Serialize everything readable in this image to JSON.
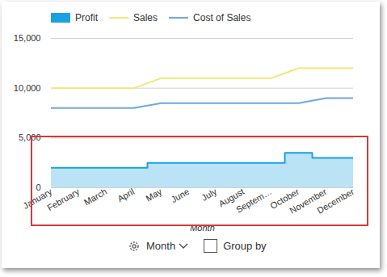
{
  "chart_data": {
    "type": "line",
    "x_label": "Month",
    "categories": [
      "January",
      "February",
      "March",
      "April",
      "May",
      "June",
      "July",
      "August",
      "Septem…",
      "October",
      "November",
      "December"
    ],
    "series": [
      {
        "name": "Profit",
        "type": "area",
        "color": "#1ba1e2",
        "line_style": "step",
        "values": [
          2000,
          2000,
          2000,
          2000,
          2500,
          2500,
          2500,
          2500,
          2500,
          3500,
          3000,
          3000
        ]
      },
      {
        "name": "Sales",
        "type": "line",
        "color": "#f3e67a",
        "values": [
          10000,
          10000,
          10000,
          10000,
          11000,
          11000,
          11000,
          11000,
          11000,
          12000,
          12000,
          12000
        ]
      },
      {
        "name": "Cost of Sales",
        "type": "line",
        "color": "#6fa8dc",
        "values": [
          8000,
          8000,
          8000,
          8000,
          8500,
          8500,
          8500,
          8500,
          8500,
          8500,
          9000,
          9000
        ]
      }
    ],
    "ylim": [
      0,
      15000
    ],
    "yticks": [
      0,
      {
        "value": 5000,
        "label": "5,000"
      },
      {
        "value": 10000,
        "label": "10,000"
      },
      {
        "value": 15000,
        "label": "15,000"
      }
    ],
    "grid": true,
    "legend": "top-left"
  },
  "controls": {
    "dropdown": "Month",
    "checkbox": "Group by"
  }
}
